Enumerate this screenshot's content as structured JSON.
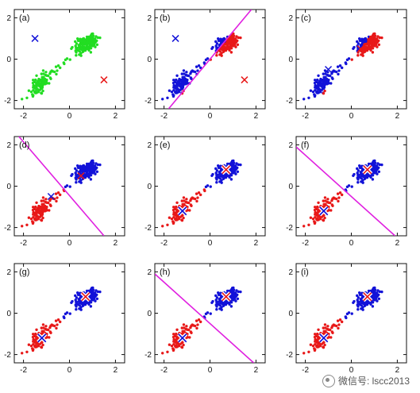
{
  "chart_data": [
    {
      "type": "scatter",
      "panel_label": "(a)",
      "state": "data",
      "xlim": [
        -2.4,
        2.4
      ],
      "ylim": [
        -2.4,
        2.4
      ],
      "xticks": [
        "-2",
        "0",
        "2"
      ],
      "yticks": [
        "-2",
        "0",
        "2"
      ],
      "points": {
        "green": "all"
      },
      "centroids": [
        {
          "color": "blue",
          "x": -1.5,
          "y": 1.0
        },
        {
          "color": "red",
          "x": 1.5,
          "y": -1.0
        }
      ],
      "boundary": null
    },
    {
      "type": "scatter",
      "panel_label": "(b)",
      "state": "assign",
      "xlim": [
        -2.4,
        2.4
      ],
      "ylim": [
        -2.4,
        2.4
      ],
      "xticks": [
        "-2",
        "0",
        "2"
      ],
      "yticks": [
        "-2",
        "0",
        "2"
      ],
      "centroids": [
        {
          "color": "blue",
          "x": -1.5,
          "y": 1.0
        },
        {
          "color": "red",
          "x": 1.5,
          "y": -1.0
        }
      ],
      "boundary": {
        "x1": -1.8,
        "y1": -2.4,
        "x2": 1.8,
        "y2": 2.4
      }
    },
    {
      "type": "scatter",
      "panel_label": "(c)",
      "state": "update",
      "xlim": [
        -2.4,
        2.4
      ],
      "ylim": [
        -2.4,
        2.4
      ],
      "xticks": [
        "-2",
        "0",
        "2"
      ],
      "yticks": [
        "-2",
        "0",
        "2"
      ],
      "centroids": [
        {
          "color": "blue",
          "x": -1.0,
          "y": -0.5
        },
        {
          "color": "red",
          "x": 0.4,
          "y": 0.5
        }
      ],
      "boundary": null
    },
    {
      "type": "scatter",
      "panel_label": "(d)",
      "state": "assign",
      "xlim": [
        -2.4,
        2.4
      ],
      "ylim": [
        -2.4,
        2.4
      ],
      "xticks": [
        "-2",
        "0",
        "2"
      ],
      "yticks": [
        "-2",
        "0",
        "2"
      ],
      "centroids": [
        {
          "color": "blue",
          "x": -0.8,
          "y": -0.5
        },
        {
          "color": "red",
          "x": 0.5,
          "y": 0.5
        }
      ],
      "boundary": {
        "x1": -2.2,
        "y1": 2.4,
        "x2": 1.5,
        "y2": -2.4
      }
    },
    {
      "type": "scatter",
      "panel_label": "(e)",
      "state": "update",
      "xlim": [
        -2.4,
        2.4
      ],
      "ylim": [
        -2.4,
        2.4
      ],
      "xticks": [
        "-2",
        "0",
        "2"
      ],
      "yticks": [
        "-2",
        "0",
        "2"
      ],
      "centroids": [
        {
          "color": "blue",
          "x": -1.2,
          "y": -1.2
        },
        {
          "color": "red",
          "x": 0.7,
          "y": 0.8
        }
      ],
      "boundary": null
    },
    {
      "type": "scatter",
      "panel_label": "(f)",
      "state": "assign",
      "xlim": [
        -2.4,
        2.4
      ],
      "ylim": [
        -2.4,
        2.4
      ],
      "xticks": [
        "-2",
        "0",
        "2"
      ],
      "yticks": [
        "-2",
        "0",
        "2"
      ],
      "centroids": [
        {
          "color": "blue",
          "x": -1.2,
          "y": -1.2
        },
        {
          "color": "red",
          "x": 0.7,
          "y": 0.8
        }
      ],
      "boundary": {
        "x1": -2.4,
        "y1": 1.9,
        "x2": 1.9,
        "y2": -2.4
      }
    },
    {
      "type": "scatter",
      "panel_label": "(g)",
      "state": "update",
      "xlim": [
        -2.4,
        2.4
      ],
      "ylim": [
        -2.4,
        2.4
      ],
      "xticks": [
        "-2",
        "0",
        "2"
      ],
      "yticks": [
        "-2",
        "0",
        "2"
      ],
      "centroids": [
        {
          "color": "blue",
          "x": -1.2,
          "y": -1.2
        },
        {
          "color": "red",
          "x": 0.7,
          "y": 0.8
        }
      ],
      "boundary": null
    },
    {
      "type": "scatter",
      "panel_label": "(h)",
      "state": "assign",
      "xlim": [
        -2.4,
        2.4
      ],
      "ylim": [
        -2.4,
        2.4
      ],
      "xticks": [
        "-2",
        "0",
        "2"
      ],
      "yticks": [
        "-2",
        "0",
        "2"
      ],
      "centroids": [
        {
          "color": "blue",
          "x": -1.2,
          "y": -1.2
        },
        {
          "color": "red",
          "x": 0.7,
          "y": 0.8
        }
      ],
      "boundary": {
        "x1": -2.4,
        "y1": 1.9,
        "x2": 1.9,
        "y2": -2.4
      }
    },
    {
      "type": "scatter",
      "panel_label": "(i)",
      "state": "update",
      "xlim": [
        -2.4,
        2.4
      ],
      "ylim": [
        -2.4,
        2.4
      ],
      "xticks": [
        "-2",
        "0",
        "2"
      ],
      "yticks": [
        "-2",
        "0",
        "2"
      ],
      "centroids": [
        {
          "color": "blue",
          "x": -1.2,
          "y": -1.2
        },
        {
          "color": "red",
          "x": 0.7,
          "y": 0.8
        }
      ],
      "boundary": null
    }
  ],
  "colors": {
    "green": "#22dd22",
    "blue": "#1212d8",
    "red": "#e81818",
    "boundary": "#e020e0",
    "axis": "#111111"
  },
  "watermark": {
    "text": "微信号: lscc2013"
  }
}
